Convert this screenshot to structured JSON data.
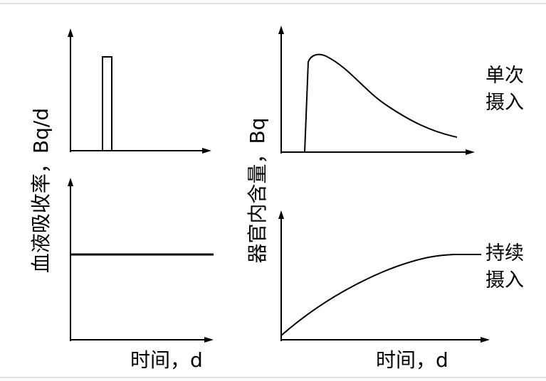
{
  "left_panel": {
    "y_axis_label": "血液吸收率，Bq/d",
    "x_axis_label": "时间，d"
  },
  "right_panel": {
    "y_axis_label": "器官内含量，Bq",
    "x_axis_label": "时间，d",
    "single_intake": {
      "line1": "单次",
      "line2": "摄入"
    },
    "continuous_intake": {
      "line1": "持续",
      "line2": "摄入"
    }
  },
  "chart_data": [
    {
      "type": "line",
      "description_key": "intake-pulse",
      "series": [
        {
          "shape": "single rectangular pulse"
        }
      ]
    },
    {
      "type": "line",
      "series": [
        {
          "shape": "constant level"
        }
      ]
    },
    {
      "type": "line",
      "series": [
        {
          "shape": "sharp rise then exponential decay"
        }
      ]
    },
    {
      "type": "line",
      "series": [
        {
          "shape": "rise to plateau"
        }
      ]
    }
  ],
  "colors": {
    "stroke": "#000000",
    "frame": "#e3e3e3"
  }
}
